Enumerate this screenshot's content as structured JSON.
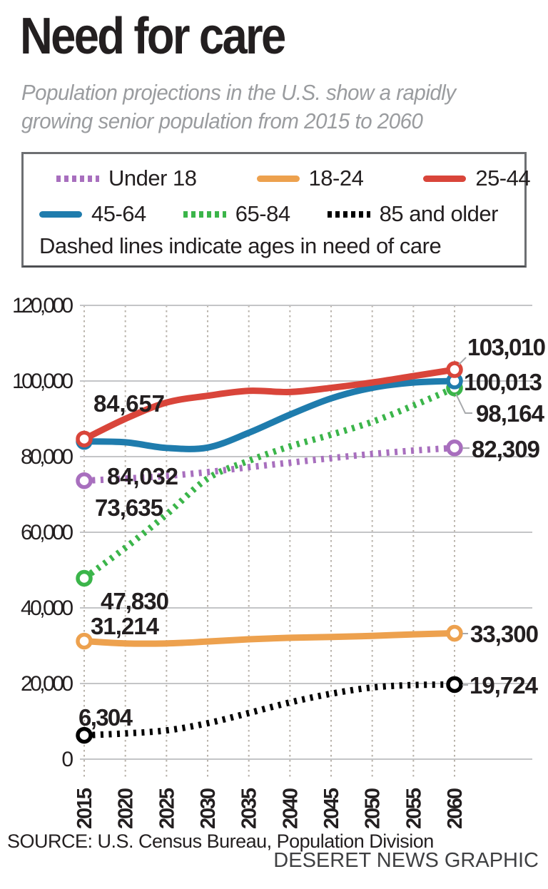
{
  "header": {
    "title": "Need for care",
    "subtitle_line1": "Population projections in the U.S. show a rapidly",
    "subtitle_line2": "growing senior population from 2015 to 2060"
  },
  "legend": {
    "items": [
      {
        "label": "Under 18",
        "color": "#a86fbe",
        "style": "dashed"
      },
      {
        "label": "18-24",
        "color": "#eda14e",
        "style": "solid"
      },
      {
        "label": "25-44",
        "color": "#d9453a",
        "style": "solid"
      },
      {
        "label": "45-64",
        "color": "#1f7cad",
        "style": "solid"
      },
      {
        "label": "65-84",
        "color": "#3bb54a",
        "style": "dashed"
      },
      {
        "label": "85 and older",
        "color": "#000000",
        "style": "dashed"
      }
    ],
    "note": "Dashed lines indicate ages in need of care"
  },
  "chart_data": {
    "type": "line",
    "title": "Need for care",
    "x": [
      2015,
      2020,
      2025,
      2030,
      2035,
      2040,
      2045,
      2050,
      2055,
      2060
    ],
    "x_tick_labels": [
      "2015",
      "2020",
      "2025",
      "2030",
      "2035",
      "2040",
      "2045",
      "2050",
      "2055",
      "2060"
    ],
    "y_ticks": [
      0,
      20000,
      40000,
      60000,
      80000,
      100000,
      120000
    ],
    "y_tick_labels": [
      "0",
      "20,000",
      "40,000",
      "60,000",
      "80,000",
      "100,000",
      "120,000"
    ],
    "ylim": [
      0,
      120000
    ],
    "grid": {
      "horizontal": "solid",
      "vertical": "dotted"
    },
    "legend_position": "top",
    "series": [
      {
        "name": "Under 18",
        "color": "#a86fbe",
        "style": "dashed",
        "values": [
          73635,
          74200,
          74900,
          75900,
          77200,
          78400,
          79600,
          80700,
          81600,
          82309
        ],
        "start_label": "73,635",
        "end_label": "82,309"
      },
      {
        "name": "18-24",
        "color": "#eda14e",
        "style": "solid",
        "values": [
          31214,
          30600,
          30600,
          31100,
          31700,
          32100,
          32300,
          32600,
          33000,
          33300
        ],
        "start_label": "31,214",
        "end_label": "33,300"
      },
      {
        "name": "25-44",
        "color": "#d9453a",
        "style": "solid",
        "values": [
          84657,
          90000,
          94300,
          96100,
          97400,
          97100,
          98200,
          99600,
          101300,
          103010
        ],
        "start_label": "84,657",
        "end_label": "103,010"
      },
      {
        "name": "45-64",
        "color": "#1f7cad",
        "style": "solid",
        "values": [
          84032,
          83800,
          82300,
          82400,
          86300,
          91100,
          95400,
          98200,
          99600,
          100013
        ],
        "start_label": "84,032",
        "end_label": "100,013"
      },
      {
        "name": "65-84",
        "color": "#3bb54a",
        "style": "dashed",
        "values": [
          47830,
          55900,
          64700,
          74200,
          78900,
          82700,
          85800,
          89200,
          93500,
          98164
        ],
        "start_label": "47,830",
        "end_label": "98,164"
      },
      {
        "name": "85 and older",
        "color": "#000000",
        "style": "dashed",
        "values": [
          6304,
          6800,
          7600,
          9500,
          12200,
          15000,
          17300,
          18950,
          19600,
          19724
        ],
        "start_label": "6,304",
        "end_label": "19,724"
      }
    ]
  },
  "footer": {
    "source": "SOURCE: U.S. Census Bureau, Population Division",
    "credit": "DESERET NEWS GRAPHIC"
  }
}
